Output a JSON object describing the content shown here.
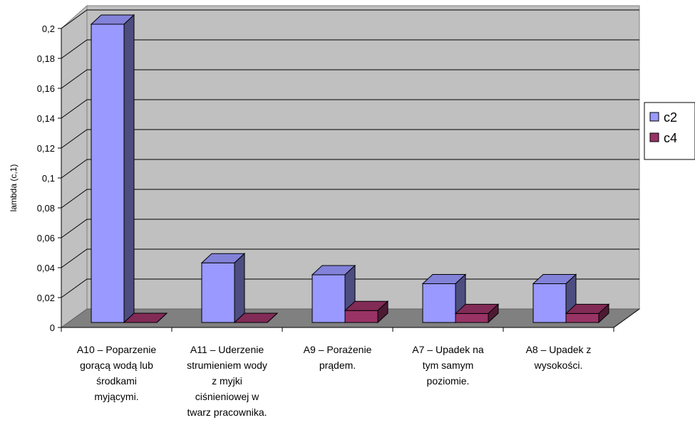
{
  "chart_data": {
    "type": "bar",
    "style": "3d-clustered-column",
    "title": "",
    "xlabel": "",
    "ylabel": "lambda (c,1)",
    "ylim": [
      0,
      0.2
    ],
    "yticks": [
      "0",
      "0,02",
      "0,04",
      "0,06",
      "0,08",
      "0,1",
      "0,12",
      "0,14",
      "0,16",
      "0,18",
      "0,2"
    ],
    "grid": true,
    "legend_position": "right",
    "categories": [
      "A10 – Poparzenie gorącą wodą lub środkami myjącymi.",
      "A11 – Uderzenie strumieniem wody z myjki ciśnieniowej w twarz pracownika.",
      "A9 – Porażenie prądem.",
      "A7 – Upadek na tym samym poziomie.",
      "A8 – Upadek z wysokości."
    ],
    "category_lines": [
      [
        "A10 – Poparzenie",
        "gorącą wodą lub",
        "środkami",
        "myjącymi."
      ],
      [
        "A11 – Uderzenie",
        "strumieniem wody",
        "z myjki",
        "ciśnieniowej w",
        "twarz pracownika."
      ],
      [
        "A9 – Porażenie",
        "prądem."
      ],
      [
        "A7 – Upadek na",
        "tym samym",
        "poziomie."
      ],
      [
        "A8 – Upadek z",
        "wysokości."
      ]
    ],
    "series": [
      {
        "name": "c2",
        "color": "#9999ff",
        "values": [
          0.2,
          0.04,
          0.032,
          0.026,
          0.026
        ]
      },
      {
        "name": "c4",
        "color": "#993366",
        "values": [
          0,
          0,
          0.008,
          0.006,
          0.006
        ]
      }
    ],
    "colors": {
      "wall": "#c0c0c0",
      "floor": "#808080",
      "grid": "#000000"
    }
  }
}
